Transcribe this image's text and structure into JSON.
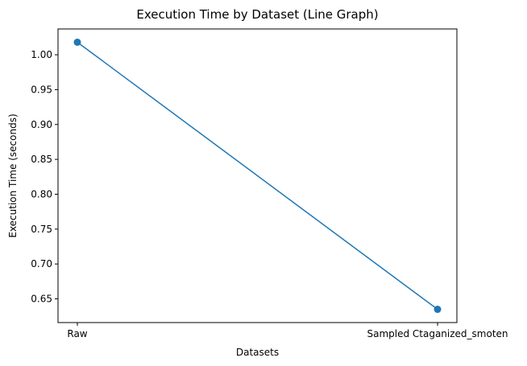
{
  "chart_data": {
    "type": "line",
    "title": "Execution Time by Dataset (Line Graph)",
    "xlabel": "Datasets",
    "ylabel": "Execution Time (seconds)",
    "categories": [
      "Raw",
      "Sampled Ctaganized_smoten"
    ],
    "series": [
      {
        "name": "Execution Time",
        "values": [
          1.018,
          0.635
        ],
        "color": "#1f77b4"
      }
    ],
    "ylim": [
      0.616,
      1.037
    ],
    "yticks": [
      0.65,
      0.7,
      0.75,
      0.8,
      0.85,
      0.9,
      0.95,
      1.0
    ],
    "ytick_labels": [
      "0.65",
      "0.70",
      "0.75",
      "0.80",
      "0.85",
      "0.90",
      "0.95",
      "1.00"
    ],
    "grid": false,
    "legend": "none"
  }
}
